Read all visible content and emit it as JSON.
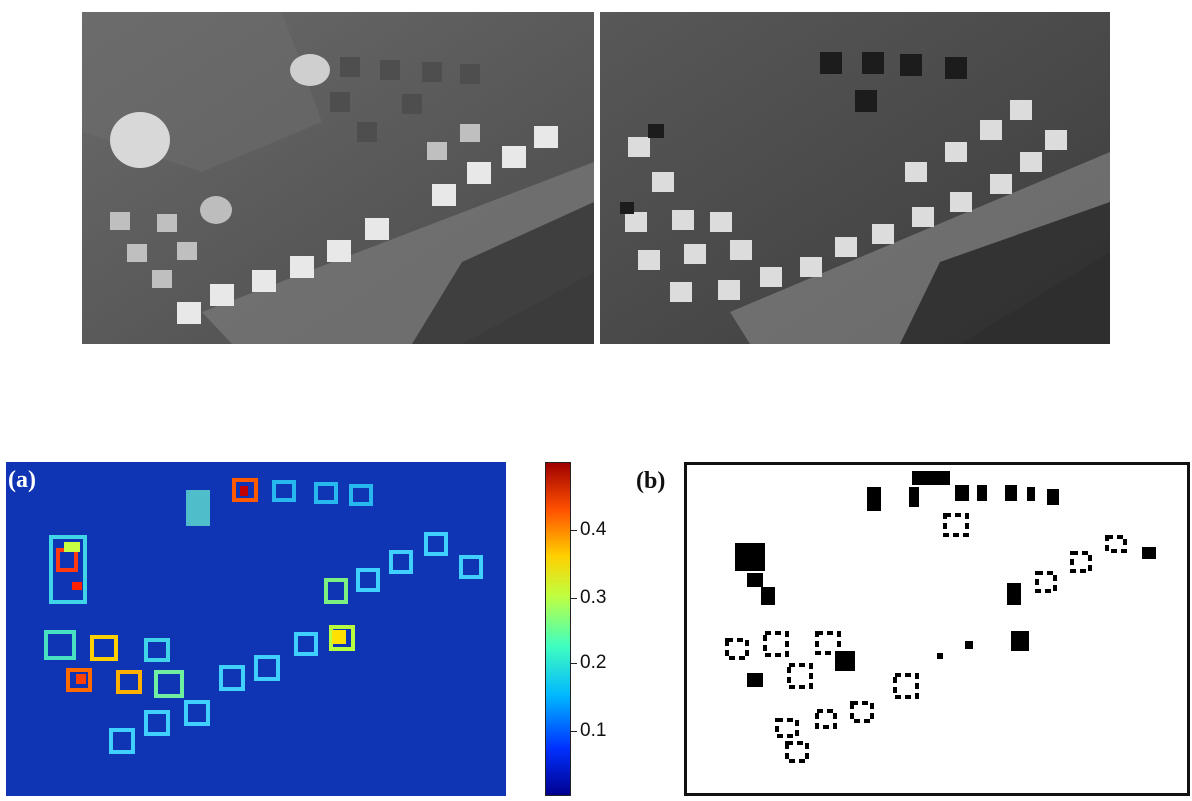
{
  "figure": {
    "panel_a_label": "(a)",
    "panel_b_label": "(b)",
    "photo_before": "grayscale aerial photo of a village with rows of houses (before)",
    "photo_after": "grayscale aerial photo of the same village (after)",
    "map_a": "change intensity map",
    "map_b": "binary change detection map"
  },
  "colorbar": {
    "ticks": [
      "0.4",
      "0.3",
      "0.2",
      "0.1"
    ],
    "tick_values": [
      0.4,
      0.3,
      0.2,
      0.1
    ],
    "range": [
      0.0,
      0.5
    ],
    "colormap": [
      "#00008f",
      "#0030ff",
      "#00b8ff",
      "#40ffbf",
      "#c0ff40",
      "#ffd000",
      "#ff5000",
      "#9f0000"
    ]
  }
}
